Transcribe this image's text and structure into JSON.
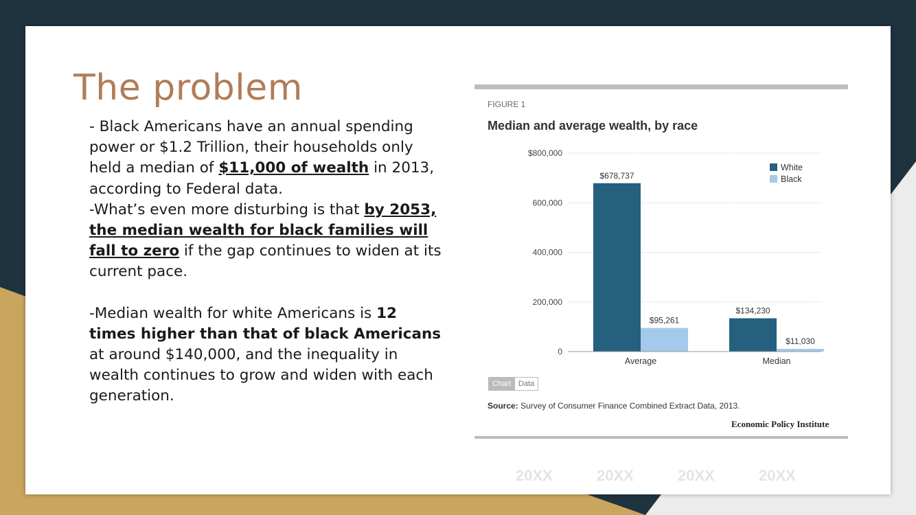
{
  "slide": {
    "title": "The problem",
    "body": {
      "p1_a": "- Black Americans have an annual spending power or $1.2 Trillion, their households only held a median of ",
      "p1_u": "$11,000 of wealth",
      "p1_b": " in 2013, according to Federal data.",
      "p2_a": "-What’s even more disturbing is that ",
      "p2_u": "by 2053, the median wealth for black families will fall to zero",
      "p2_b": " if the gap continues to widen at its current pace.",
      "p3_a": "-Median wealth for white Americans is ",
      "p3_b": "12 times higher than that of black Americans",
      "p3_c": " at around $140,000, and the inequality in wealth continues to grow and widen with each generation."
    },
    "footer_dates": [
      "20XX",
      "20XX",
      "20XX",
      "20XX"
    ]
  },
  "figure": {
    "label": "FIGURE 1",
    "title": "Median and average wealth, by race",
    "tabs": [
      "Chart",
      "Data"
    ],
    "source_label": "Source:",
    "source_text": " Survey of Consumer Finance Combined Extract Data, 2013.",
    "publisher": "Economic Policy Institute"
  },
  "colors": {
    "dark_bg": "#1f333f",
    "gold": "#c9a55e",
    "title": "#b07d57",
    "white_series": "#25607f",
    "black_series": "#a4c9ea"
  },
  "chart_data": {
    "type": "bar",
    "title": "Median and average wealth, by race",
    "categories": [
      "Average",
      "Median"
    ],
    "series": [
      {
        "name": "White",
        "values": [
          678737,
          134230
        ],
        "labels": [
          "$678,737",
          "$134,230"
        ]
      },
      {
        "name": "Black",
        "values": [
          95261,
          11030
        ],
        "labels": [
          "$95,261",
          "$11,030"
        ]
      }
    ],
    "yticks": [
      {
        "value": 0,
        "label": "0"
      },
      {
        "value": 200000,
        "label": "200,000"
      },
      {
        "value": 400000,
        "label": "400,000"
      },
      {
        "value": 600000,
        "label": "600,000"
      },
      {
        "value": 800000,
        "label": "$800,000"
      }
    ],
    "ylim": [
      0,
      800000
    ],
    "grid": true,
    "legend_position": "top-right"
  }
}
